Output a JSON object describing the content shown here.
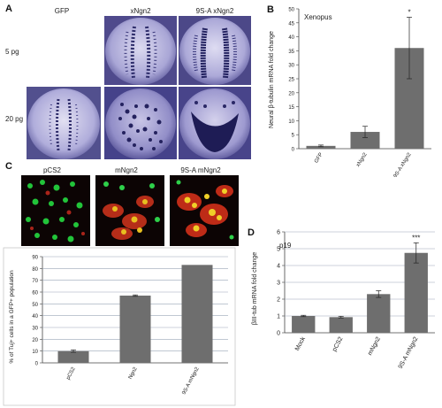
{
  "panels": {
    "A": {
      "letter": "A",
      "columns": [
        "GFP",
        "xNgn2",
        "9S-A xNgn2"
      ],
      "rows": [
        "5 pg",
        "20 pg"
      ]
    },
    "C": {
      "letter": "C",
      "columns": [
        "pCS2",
        "mNgn2",
        "9S-A mNgn2"
      ]
    }
  },
  "chart_data": [
    {
      "panel": "B",
      "type": "bar",
      "letter": "B",
      "annotation": "Xenopus",
      "categories": [
        "GFP",
        "xNgn2",
        "9S-A xNgn2"
      ],
      "values": [
        1,
        6,
        36
      ],
      "errors": [
        0.3,
        2,
        11
      ],
      "significance": [
        "",
        "",
        "*"
      ],
      "ylabel": "Neural β-tubulin mRNA fold change",
      "ylim": [
        0,
        50
      ],
      "yticks": [
        "0",
        "5",
        "10",
        "15",
        "20",
        "25",
        "30",
        "35",
        "40",
        "45",
        "50"
      ],
      "grid": false,
      "bar_color": "#6e6e6e"
    },
    {
      "panel": "C-chart",
      "type": "bar",
      "categories": [
        "pCS2",
        "Ngn2",
        "9S-A mNgn2"
      ],
      "values": [
        10,
        57,
        83
      ],
      "errors": [
        1,
        0.6,
        0
      ],
      "ylabel": "% of Tuj+ cells in a GFP+ population",
      "ylim": [
        0,
        90
      ],
      "yticks": [
        "0",
        "10",
        "20",
        "30",
        "40",
        "50",
        "60",
        "70",
        "80",
        "90"
      ],
      "grid": true,
      "bar_color": "#6e6e6e"
    },
    {
      "panel": "D",
      "type": "bar",
      "letter": "D",
      "annotation": "p19",
      "categories": [
        "Mock",
        "pCS2",
        "mNgn2",
        "9S-A mNgn2"
      ],
      "values": [
        1,
        0.93,
        2.3,
        4.75
      ],
      "errors": [
        0.04,
        0.05,
        0.2,
        0.6
      ],
      "significance": [
        "",
        "",
        "",
        "***"
      ],
      "ylabel": "βIII-tub mRNA fold change",
      "ylim": [
        0,
        6
      ],
      "yticks": [
        "0",
        "1",
        "2",
        "3",
        "4",
        "5",
        "6"
      ],
      "grid": true,
      "bar_color": "#6e6e6e"
    }
  ]
}
